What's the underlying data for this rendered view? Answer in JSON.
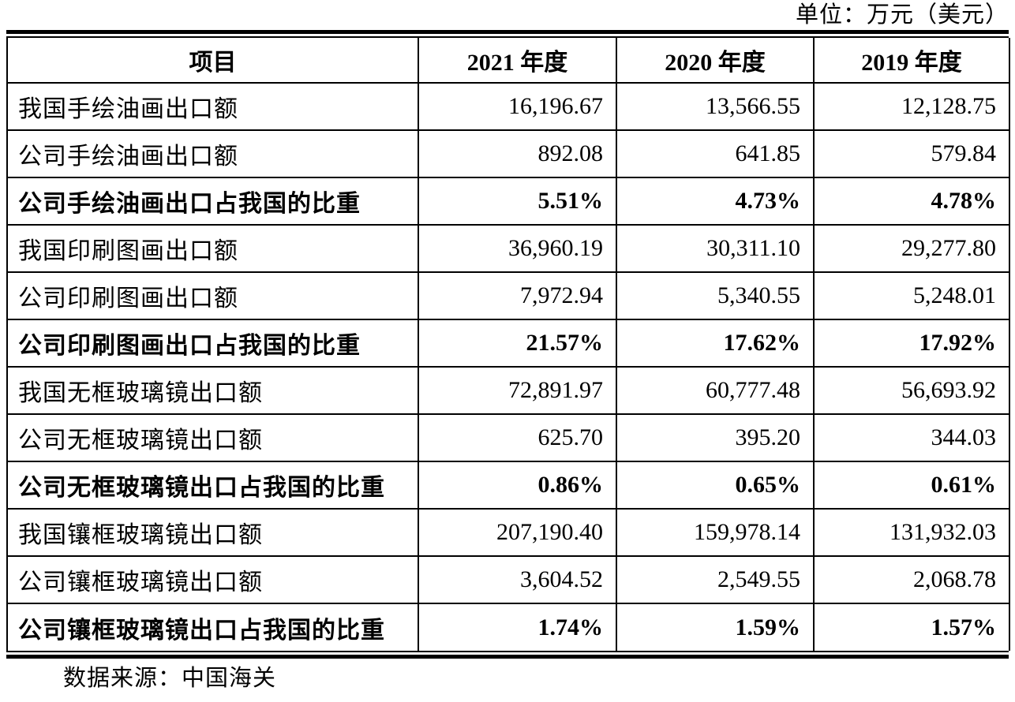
{
  "unit_label": "单位：万元（美元）",
  "source_label": "数据来源：中国海关",
  "colors": {
    "text": "#000000",
    "background": "#ffffff",
    "border": "#000000"
  },
  "table": {
    "columns": [
      "项目",
      "2021 年度",
      "2020 年度",
      "2019 年度"
    ],
    "rows": [
      {
        "label": "我国手绘油画出口额",
        "values": [
          "16,196.67",
          "13,566.55",
          "12,128.75"
        ],
        "bold": false
      },
      {
        "label": "公司手绘油画出口额",
        "values": [
          "892.08",
          "641.85",
          "579.84"
        ],
        "bold": false
      },
      {
        "label": "公司手绘油画出口占我国的比重",
        "values": [
          "5.51%",
          "4.73%",
          "4.78%"
        ],
        "bold": true
      },
      {
        "label": "我国印刷图画出口额",
        "values": [
          "36,960.19",
          "30,311.10",
          "29,277.80"
        ],
        "bold": false
      },
      {
        "label": "公司印刷图画出口额",
        "values": [
          "7,972.94",
          "5,340.55",
          "5,248.01"
        ],
        "bold": false
      },
      {
        "label": "公司印刷图画出口占我国的比重",
        "values": [
          "21.57%",
          "17.62%",
          "17.92%"
        ],
        "bold": true
      },
      {
        "label": "我国无框玻璃镜出口额",
        "values": [
          "72,891.97",
          "60,777.48",
          "56,693.92"
        ],
        "bold": false
      },
      {
        "label": "公司无框玻璃镜出口额",
        "values": [
          "625.70",
          "395.20",
          "344.03"
        ],
        "bold": false
      },
      {
        "label": "公司无框玻璃镜出口占我国的比重",
        "values": [
          "0.86%",
          "0.65%",
          "0.61%"
        ],
        "bold": true
      },
      {
        "label": "我国镶框玻璃镜出口额",
        "values": [
          "207,190.40",
          "159,978.14",
          "131,932.03"
        ],
        "bold": false
      },
      {
        "label": "公司镶框玻璃镜出口额",
        "values": [
          "3,604.52",
          "2,549.55",
          "2,068.78"
        ],
        "bold": false
      },
      {
        "label": "公司镶框玻璃镜出口占我国的比重",
        "values": [
          "1.74%",
          "1.59%",
          "1.57%"
        ],
        "bold": true
      }
    ]
  }
}
